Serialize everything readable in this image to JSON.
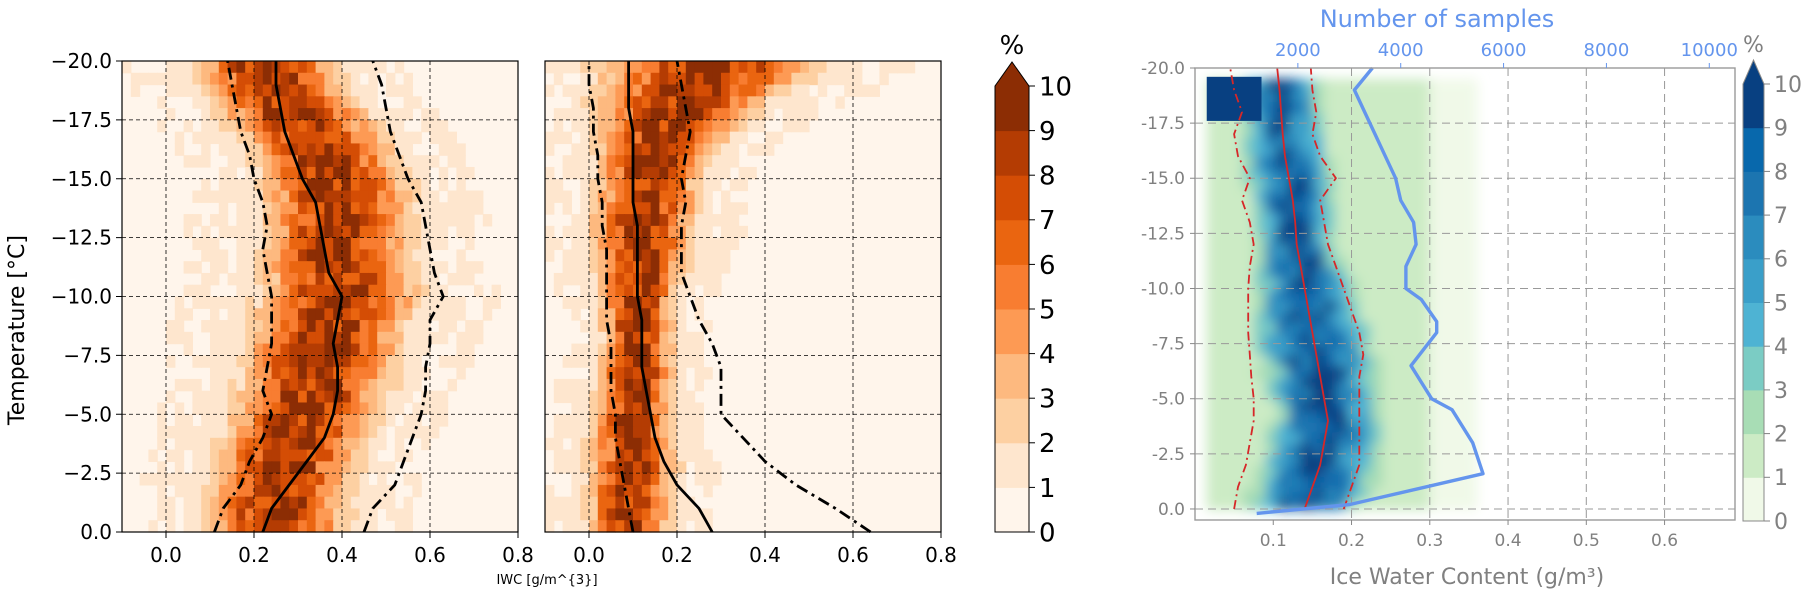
{
  "figure": {
    "temperature_axis_label": "Temperature [°C]",
    "iwc_axis_label_small": "IWC [g/m^{3}]",
    "right_xlabel": "Ice Water Content (g/m³)",
    "right_top_axis_label": "Number of samples"
  },
  "chart_data": [
    {
      "type": "heatmap",
      "panel": "left",
      "xlabel": "IWC [g/m^{3}]",
      "ylabel": "Temperature [°C]",
      "xlim": [
        -0.1,
        0.8
      ],
      "ylim": [
        0,
        -20
      ],
      "xticks": [
        "0.0",
        "0.2",
        "0.4",
        "0.6",
        "0.8"
      ],
      "yticks": [
        "0.0",
        "−2.5",
        "−5.0",
        "−7.5",
        "−10.0",
        "−12.5",
        "−15.0",
        "−17.5",
        "−20.0"
      ],
      "grid": true,
      "colormap": "Oranges",
      "series": [
        {
          "style": "solid",
          "x": [
            0.22,
            0.24,
            0.28,
            0.32,
            0.36,
            0.38,
            0.39,
            0.39,
            0.38,
            0.39,
            0.4,
            0.37,
            0.36,
            0.35,
            0.34,
            0.31,
            0.29,
            0.27,
            0.26,
            0.25,
            0.25
          ],
          "y": [
            0,
            -1,
            -2,
            -3,
            -4,
            -5,
            -6,
            -7,
            -8,
            -9,
            -10,
            -11,
            -12,
            -13,
            -14,
            -15,
            -16,
            -17,
            -18,
            -19,
            -20
          ]
        },
        {
          "style": "dashdot",
          "x": [
            0.11,
            0.13,
            0.17,
            0.19,
            0.22,
            0.24,
            0.22,
            0.23,
            0.24,
            0.24,
            0.24,
            0.23,
            0.22,
            0.23,
            0.22,
            0.2,
            0.19,
            0.17,
            0.16,
            0.15,
            0.14
          ],
          "y": [
            0,
            -1,
            -2,
            -3,
            -4,
            -5,
            -6,
            -7,
            -8,
            -9,
            -10,
            -11,
            -12,
            -13,
            -14,
            -15,
            -16,
            -17,
            -18,
            -19,
            -20
          ]
        },
        {
          "style": "dashdot",
          "x": [
            0.45,
            0.47,
            0.52,
            0.54,
            0.56,
            0.58,
            0.59,
            0.59,
            0.6,
            0.6,
            0.63,
            0.61,
            0.6,
            0.59,
            0.58,
            0.55,
            0.53,
            0.51,
            0.5,
            0.49,
            0.47
          ],
          "y": [
            0,
            -1,
            -2,
            -3,
            -4,
            -5,
            -6,
            -7,
            -8,
            -9,
            -10,
            -11,
            -12,
            -13,
            -14,
            -15,
            -16,
            -17,
            -18,
            -19,
            -20
          ]
        }
      ]
    },
    {
      "type": "heatmap",
      "panel": "middle",
      "xlim": [
        -0.1,
        0.8
      ],
      "ylim": [
        0,
        -20
      ],
      "xticks": [
        "0.0",
        "0.2",
        "0.4",
        "0.6",
        "0.8"
      ],
      "grid": true,
      "colormap": "Oranges",
      "series": [
        {
          "style": "solid",
          "x": [
            0.28,
            0.25,
            0.2,
            0.17,
            0.15,
            0.14,
            0.13,
            0.12,
            0.12,
            0.12,
            0.11,
            0.11,
            0.11,
            0.11,
            0.1,
            0.1,
            0.1,
            0.1,
            0.09,
            0.09,
            0.09
          ],
          "y": [
            0,
            -1,
            -2,
            -3,
            -4,
            -5,
            -6,
            -7,
            -8,
            -9,
            -10,
            -11,
            -12,
            -13,
            -14,
            -15,
            -16,
            -17,
            -18,
            -19,
            -20
          ]
        },
        {
          "style": "dashdot",
          "x": [
            0.1,
            0.09,
            0.08,
            0.07,
            0.06,
            0.06,
            0.05,
            0.05,
            0.05,
            0.04,
            0.04,
            0.04,
            0.04,
            0.03,
            0.03,
            0.02,
            0.02,
            0.01,
            0.01,
            0.0,
            0.0
          ],
          "y": [
            0,
            -1,
            -2,
            -3,
            -4,
            -5,
            -6,
            -7,
            -8,
            -9,
            -10,
            -11,
            -12,
            -13,
            -14,
            -15,
            -16,
            -17,
            -18,
            -19,
            -20
          ]
        },
        {
          "style": "dashdot",
          "x": [
            0.64,
            0.56,
            0.47,
            0.4,
            0.35,
            0.3,
            0.3,
            0.3,
            0.28,
            0.25,
            0.23,
            0.21,
            0.21,
            0.21,
            0.22,
            0.21,
            0.22,
            0.23,
            0.22,
            0.21,
            0.2
          ],
          "y": [
            0,
            -1,
            -2,
            -3,
            -4,
            -5,
            -6,
            -7,
            -8,
            -9,
            -10,
            -11,
            -12,
            -13,
            -14,
            -15,
            -16,
            -17,
            -18,
            -19,
            -20
          ]
        }
      ]
    },
    {
      "type": "colorbar",
      "panel": "left-colorbar",
      "title": "%",
      "ticks": [
        "0",
        "1",
        "2",
        "3",
        "4",
        "5",
        "6",
        "7",
        "8",
        "9",
        "10"
      ],
      "extend": "max",
      "colors": [
        "#fff5eb",
        "#fee6ce",
        "#fdd0a2",
        "#fdb97f",
        "#fd9a54",
        "#f87d31",
        "#ea6510",
        "#d44d05",
        "#b43c03",
        "#8c2d04"
      ]
    },
    {
      "type": "heatmap",
      "panel": "right",
      "xlabel": "Ice Water Content (g/m³)",
      "ylabel": "",
      "xlim": [
        0,
        0.69
      ],
      "ylim": [
        0.5,
        -20
      ],
      "xticks": [
        "0.1",
        "0.2",
        "0.3",
        "0.4",
        "0.5",
        "0.6"
      ],
      "yticks": [
        "0.0",
        "-2.5",
        "-5.0",
        "-7.5",
        "-10.0",
        "-12.5",
        "-15.0",
        "-17.5",
        "-20.0"
      ],
      "top_axis": {
        "label": "Number of samples",
        "ticks": [
          "2000",
          "4000",
          "6000",
          "8000",
          "10000"
        ],
        "color": "#6495ed"
      },
      "grid": true,
      "colormap": "GnBu",
      "series": [
        {
          "style": "solid",
          "color": "#d62728",
          "x": [
            0.14,
            0.15,
            0.16,
            0.165,
            0.17,
            0.165,
            0.16,
            0.155,
            0.15,
            0.145,
            0.14,
            0.135,
            0.13,
            0.128,
            0.125,
            0.12,
            0.115,
            0.112,
            0.11,
            0.108,
            0.105
          ],
          "y": [
            0,
            -1,
            -2,
            -3,
            -4,
            -5,
            -6,
            -7,
            -8,
            -9,
            -10,
            -11,
            -12,
            -13,
            -14,
            -15,
            -16,
            -17,
            -18,
            -19,
            -20
          ]
        },
        {
          "style": "dashdot",
          "color": "#d62728",
          "x": [
            0.05,
            0.055,
            0.065,
            0.07,
            0.075,
            0.075,
            0.072,
            0.07,
            0.068,
            0.068,
            0.068,
            0.07,
            0.075,
            0.07,
            0.06,
            0.07,
            0.055,
            0.05,
            0.06,
            0.05,
            0.045
          ],
          "y": [
            0,
            -1,
            -2,
            -3,
            -4,
            -5,
            -6,
            -7,
            -8,
            -9,
            -10,
            -11,
            -12,
            -13,
            -14,
            -15,
            -16,
            -17,
            -18,
            -19,
            -20
          ]
        },
        {
          "style": "dashdot",
          "color": "#d62728",
          "x": [
            0.19,
            0.2,
            0.21,
            0.21,
            0.21,
            0.21,
            0.21,
            0.215,
            0.21,
            0.2,
            0.19,
            0.18,
            0.17,
            0.165,
            0.16,
            0.18,
            0.16,
            0.15,
            0.155,
            0.15,
            0.148
          ],
          "y": [
            0,
            -1,
            -2,
            -3,
            -4,
            -5,
            -6,
            -7,
            -8,
            -9,
            -10,
            -11,
            -12,
            -13,
            -14,
            -15,
            -16,
            -17,
            -18,
            -19,
            -20
          ]
        },
        {
          "style": "solid",
          "color": "#6495ed",
          "axis": "top",
          "x": [
            1200,
            3000,
            5600,
            5400,
            5000,
            4600,
            4200,
            4700,
            4700,
            4400,
            4100,
            4100,
            4300,
            4250,
            4000,
            3900,
            3700,
            3500,
            3300,
            3100,
            3450
          ],
          "y": [
            0.2,
            -0.2,
            -1.6,
            -3,
            -4.5,
            -5,
            -6.5,
            -8,
            -8.5,
            -9.5,
            -10,
            -11,
            -12,
            -13,
            -14,
            -15,
            -16,
            -17,
            -18,
            -19,
            -20
          ]
        }
      ]
    },
    {
      "type": "colorbar",
      "panel": "right-colorbar",
      "title": "%",
      "ticks": [
        "0",
        "1",
        "2",
        "3",
        "4",
        "5",
        "6",
        "7",
        "8",
        "9",
        "10"
      ],
      "extend": "max",
      "colors": [
        "#f0f9e8",
        "#ccebc5",
        "#a8ddb5",
        "#7bccc4",
        "#4eb3d3",
        "#3a9fc9",
        "#2b8cbe",
        "#1c75b0",
        "#0868ac",
        "#084081"
      ]
    }
  ]
}
